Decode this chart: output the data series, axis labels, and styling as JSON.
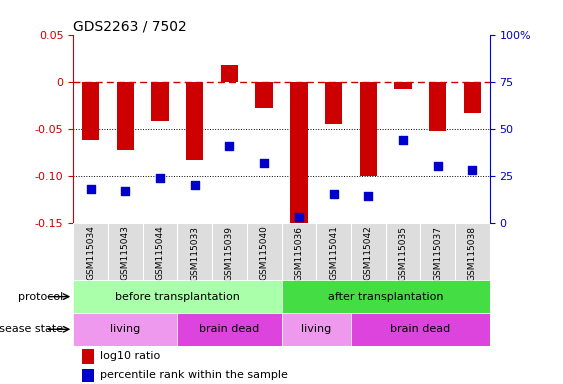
{
  "title": "GDS2263 / 7502",
  "samples": [
    "GSM115034",
    "GSM115043",
    "GSM115044",
    "GSM115033",
    "GSM115039",
    "GSM115040",
    "GSM115036",
    "GSM115041",
    "GSM115042",
    "GSM115035",
    "GSM115037",
    "GSM115038"
  ],
  "log10_ratio": [
    -0.062,
    -0.073,
    -0.042,
    -0.083,
    0.018,
    -0.028,
    -0.152,
    -0.045,
    -0.1,
    -0.008,
    -0.052,
    -0.033
  ],
  "percentile_rank": [
    18,
    17,
    24,
    20,
    41,
    32,
    3,
    15,
    14,
    44,
    30,
    28
  ],
  "ylim_left": [
    -0.15,
    0.05
  ],
  "ylim_right": [
    0,
    100
  ],
  "bar_color": "#cc0000",
  "dot_color": "#0000cc",
  "zero_line_color": "#cc0000",
  "grid_color": "#000000",
  "protocol_before_color": "#aaffaa",
  "protocol_after_color": "#44dd44",
  "disease_living_color": "#ee99ee",
  "disease_braindead_color": "#dd44dd",
  "protocol_before_range": [
    0,
    6
  ],
  "protocol_after_range": [
    6,
    12
  ],
  "disease_living1_range": [
    0,
    3
  ],
  "disease_braindead1_range": [
    3,
    6
  ],
  "disease_living2_range": [
    6,
    8
  ],
  "disease_braindead2_range": [
    8,
    12
  ],
  "bar_width": 0.5,
  "dot_size": 28,
  "left_ticks": [
    0.05,
    0,
    -0.05,
    -0.1,
    -0.15
  ],
  "right_ticks": [
    100,
    75,
    50,
    25,
    0
  ],
  "grid_lines": [
    -0.05,
    -0.1
  ]
}
